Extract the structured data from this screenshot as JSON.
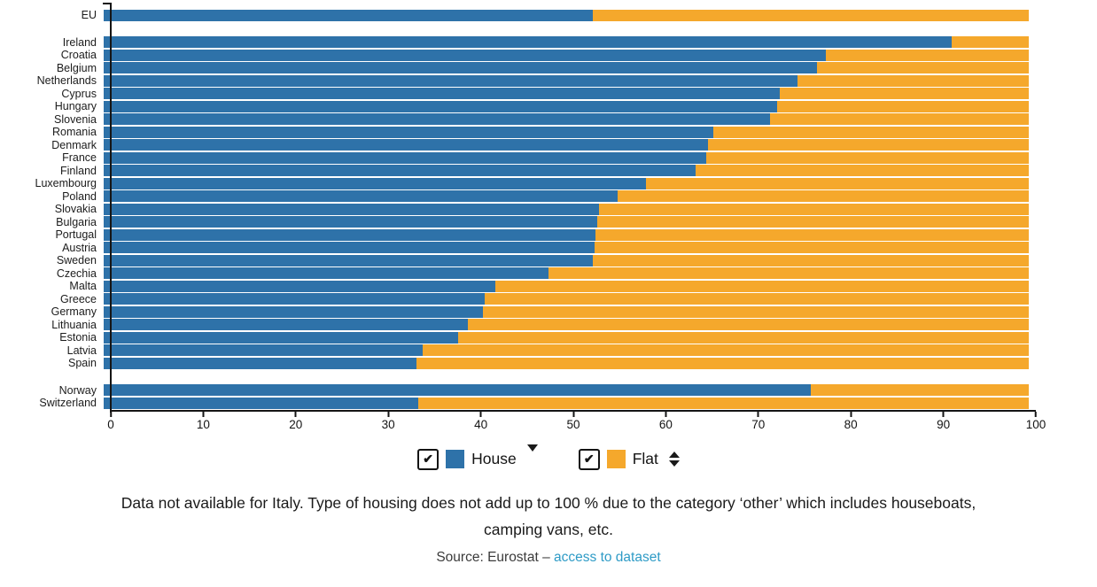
{
  "chart_data": {
    "type": "bar",
    "orientation": "horizontal",
    "stacked": true,
    "xlim": [
      0,
      100
    ],
    "x_ticks": [
      0,
      10,
      20,
      30,
      40,
      50,
      60,
      70,
      80,
      90,
      100
    ],
    "series": [
      "House",
      "Flat"
    ],
    "unit": "percent",
    "colors": {
      "house": "#2e72a9",
      "flat": "#f5a82c"
    },
    "grid": false,
    "groups": [
      {
        "name": "eu-aggregate",
        "rows": [
          {
            "label": "EU",
            "house": 52.9,
            "flat": 47.1
          }
        ]
      },
      {
        "name": "member-states",
        "rows": [
          {
            "label": "Ireland",
            "house": 91.7,
            "flat": 8.3
          },
          {
            "label": "Croatia",
            "house": 78.1,
            "flat": 21.9
          },
          {
            "label": "Belgium",
            "house": 77.1,
            "flat": 22.9
          },
          {
            "label": "Netherlands",
            "house": 75.0,
            "flat": 25.0
          },
          {
            "label": "Cyprus",
            "house": 73.1,
            "flat": 26.9
          },
          {
            "label": "Hungary",
            "house": 72.8,
            "flat": 27.2
          },
          {
            "label": "Slovenia",
            "house": 72.0,
            "flat": 28.0
          },
          {
            "label": "Romania",
            "house": 65.9,
            "flat": 34.1
          },
          {
            "label": "Denmark",
            "house": 65.3,
            "flat": 34.7
          },
          {
            "label": "France",
            "house": 65.1,
            "flat": 34.9
          },
          {
            "label": "Finland",
            "house": 64.0,
            "flat": 36.0
          },
          {
            "label": "Luxembourg",
            "house": 58.6,
            "flat": 41.4
          },
          {
            "label": "Poland",
            "house": 55.6,
            "flat": 44.4
          },
          {
            "label": "Slovakia",
            "house": 53.5,
            "flat": 46.5
          },
          {
            "label": "Bulgaria",
            "house": 53.4,
            "flat": 46.6
          },
          {
            "label": "Portugal",
            "house": 53.2,
            "flat": 46.8
          },
          {
            "label": "Austria",
            "house": 53.1,
            "flat": 46.9
          },
          {
            "label": "Sweden",
            "house": 52.9,
            "flat": 47.1
          },
          {
            "label": "Czechia",
            "house": 48.1,
            "flat": 51.9
          },
          {
            "label": "Malta",
            "house": 42.3,
            "flat": 57.7
          },
          {
            "label": "Greece",
            "house": 41.2,
            "flat": 58.8
          },
          {
            "label": "Germany",
            "house": 41.0,
            "flat": 59.0
          },
          {
            "label": "Lithuania",
            "house": 39.4,
            "flat": 60.6
          },
          {
            "label": "Estonia",
            "house": 38.3,
            "flat": 61.7
          },
          {
            "label": "Latvia",
            "house": 34.5,
            "flat": 65.5
          },
          {
            "label": "Spain",
            "house": 33.8,
            "flat": 66.2
          }
        ]
      },
      {
        "name": "non-eu",
        "rows": [
          {
            "label": "Norway",
            "house": 76.4,
            "flat": 23.6
          },
          {
            "label": "Switzerland",
            "house": 34.0,
            "flat": 66.0
          }
        ]
      }
    ]
  },
  "legend": {
    "checkmark": "✔",
    "house": {
      "label": "House",
      "checked": true,
      "sort": "descending"
    },
    "flat": {
      "label": "Flat",
      "checked": true,
      "sort": "unsorted"
    }
  },
  "note": {
    "line1": "Data not available for Italy. Type of housing does not add up to 100 % due to the category ‘other’ which includes houseboats,",
    "line2": "camping vans, etc."
  },
  "source": {
    "prefix": "Source: Eurostat – ",
    "link_label": "access to dataset",
    "link_color": "#2e9bc6"
  }
}
